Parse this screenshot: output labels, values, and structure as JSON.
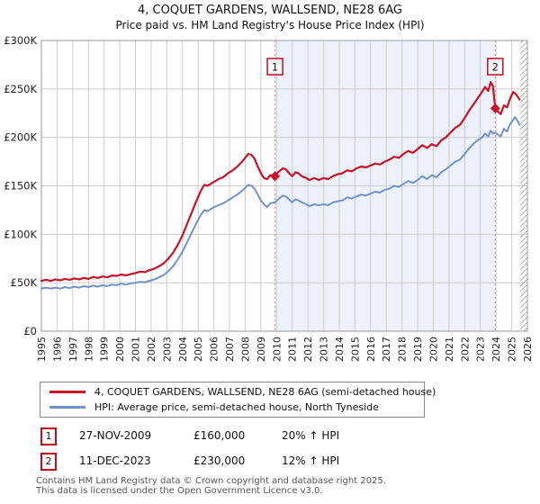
{
  "title": "4, COQUET GARDENS, WALLSEND, NE28 6AG",
  "subtitle": "Price paid vs. HM Land Registry's House Price Index (HPI)",
  "legend": [
    {
      "label": "4, COQUET GARDENS, WALLSEND, NE28 6AG (semi-detached house)",
      "color": "#c81426"
    },
    {
      "label": "HPI: Average price, semi-detached house, North Tyneside",
      "color": "#7094c8"
    }
  ],
  "annotations": [
    {
      "num": "1",
      "date": "27-NOV-2009",
      "price": "£160,000",
      "hpi": "20% ↑ HPI"
    },
    {
      "num": "2",
      "date": "11-DEC-2023",
      "price": "£230,000",
      "hpi": "12% ↑ HPI"
    }
  ],
  "footer": {
    "line1": "Contains HM Land Registry data © Crown copyright and database right 2025.",
    "line2": "This data is licensed under the Open Government Licence v3.0."
  },
  "chart_data": {
    "type": "line",
    "x_axis": {
      "min": 1995,
      "max": 2026,
      "ticks": [
        1995,
        1996,
        1997,
        1998,
        1999,
        2000,
        2001,
        2002,
        2003,
        2004,
        2005,
        2006,
        2007,
        2008,
        2009,
        2010,
        2011,
        2012,
        2013,
        2014,
        2015,
        2016,
        2017,
        2018,
        2019,
        2020,
        2021,
        2022,
        2023,
        2024,
        2025,
        2026
      ]
    },
    "y_axis": {
      "max": 300,
      "unit": "£K",
      "ticks": [
        {
          "v": 0,
          "label": "£0"
        },
        {
          "v": 50,
          "label": "£50K"
        },
        {
          "v": 100,
          "label": "£100K"
        },
        {
          "v": 150,
          "label": "£150K"
        },
        {
          "v": 200,
          "label": "£200K"
        },
        {
          "v": 250,
          "label": "£250K"
        },
        {
          "v": 300,
          "label": "£300K"
        }
      ]
    },
    "shade": {
      "from": 2009.9,
      "to": 2023.95
    },
    "hatch_from": 2025.55,
    "events": [
      {
        "label": "1",
        "year": 2009.9,
        "value": 160
      },
      {
        "label": "2",
        "year": 2023.95,
        "value": 230
      }
    ],
    "colors": {
      "grid": "#cccccc",
      "border": "#9a9a9a",
      "shade": "#edf1f9",
      "event_line": "#e89090",
      "event_box_border": "#c00d1e",
      "hatch": "#b0b0b0",
      "tick_text": "#222222"
    },
    "series": [
      {
        "name": "property",
        "color": "#c81426",
        "width": 2.2,
        "points": [
          [
            1995.0,
            52
          ],
          [
            1995.3,
            53
          ],
          [
            1995.6,
            52
          ],
          [
            1995.9,
            53.5
          ],
          [
            1996.2,
            52.5
          ],
          [
            1996.5,
            54
          ],
          [
            1996.8,
            53
          ],
          [
            1997.1,
            54.5
          ],
          [
            1997.4,
            53.5
          ],
          [
            1997.7,
            55
          ],
          [
            1998.0,
            54
          ],
          [
            1998.3,
            56
          ],
          [
            1998.6,
            55
          ],
          [
            1998.9,
            56.5
          ],
          [
            1999.2,
            55.5
          ],
          [
            1999.5,
            57.5
          ],
          [
            1999.8,
            57
          ],
          [
            2000.1,
            58.5
          ],
          [
            2000.4,
            57.5
          ],
          [
            2000.7,
            59
          ],
          [
            2001.0,
            60
          ],
          [
            2001.3,
            61.5
          ],
          [
            2001.6,
            61
          ],
          [
            2001.9,
            63
          ],
          [
            2002.2,
            64.5
          ],
          [
            2002.5,
            67
          ],
          [
            2002.8,
            70
          ],
          [
            2003.1,
            75
          ],
          [
            2003.4,
            81
          ],
          [
            2003.7,
            89
          ],
          [
            2004.0,
            99
          ],
          [
            2004.3,
            111
          ],
          [
            2004.6,
            123
          ],
          [
            2004.9,
            135
          ],
          [
            2005.2,
            146
          ],
          [
            2005.4,
            151
          ],
          [
            2005.6,
            150
          ],
          [
            2005.8,
            152
          ],
          [
            2006.0,
            154
          ],
          [
            2006.3,
            157
          ],
          [
            2006.6,
            159
          ],
          [
            2006.9,
            163
          ],
          [
            2007.2,
            166
          ],
          [
            2007.5,
            170
          ],
          [
            2007.8,
            175
          ],
          [
            2008.0,
            179
          ],
          [
            2008.2,
            183
          ],
          [
            2008.4,
            182
          ],
          [
            2008.6,
            178
          ],
          [
            2008.8,
            170
          ],
          [
            2009.0,
            163
          ],
          [
            2009.2,
            158
          ],
          [
            2009.4,
            157
          ],
          [
            2009.6,
            161
          ],
          [
            2009.9,
            160
          ],
          [
            2010.1,
            164
          ],
          [
            2010.4,
            168
          ],
          [
            2010.6,
            167
          ],
          [
            2010.8,
            163
          ],
          [
            2011.0,
            160
          ],
          [
            2011.2,
            164
          ],
          [
            2011.4,
            163
          ],
          [
            2011.6,
            160
          ],
          [
            2011.9,
            158
          ],
          [
            2012.1,
            156
          ],
          [
            2012.4,
            158
          ],
          [
            2012.7,
            156
          ],
          [
            2013.0,
            158
          ],
          [
            2013.3,
            157
          ],
          [
            2013.6,
            160
          ],
          [
            2013.9,
            162
          ],
          [
            2014.2,
            163
          ],
          [
            2014.5,
            166
          ],
          [
            2014.8,
            165
          ],
          [
            2015.1,
            168
          ],
          [
            2015.4,
            170
          ],
          [
            2015.7,
            169
          ],
          [
            2016.0,
            171
          ],
          [
            2016.3,
            173
          ],
          [
            2016.6,
            172
          ],
          [
            2016.9,
            175
          ],
          [
            2017.2,
            177
          ],
          [
            2017.5,
            180
          ],
          [
            2017.8,
            179
          ],
          [
            2018.1,
            183
          ],
          [
            2018.4,
            186
          ],
          [
            2018.7,
            184
          ],
          [
            2019.0,
            188
          ],
          [
            2019.3,
            192
          ],
          [
            2019.6,
            189
          ],
          [
            2019.9,
            193
          ],
          [
            2020.2,
            191
          ],
          [
            2020.5,
            197
          ],
          [
            2020.8,
            200
          ],
          [
            2021.1,
            205
          ],
          [
            2021.4,
            210
          ],
          [
            2021.7,
            213
          ],
          [
            2022.0,
            220
          ],
          [
            2022.3,
            228
          ],
          [
            2022.6,
            235
          ],
          [
            2022.9,
            242
          ],
          [
            2023.1,
            247
          ],
          [
            2023.3,
            252
          ],
          [
            2023.5,
            248
          ],
          [
            2023.65,
            257
          ],
          [
            2023.8,
            253
          ],
          [
            2023.95,
            230
          ],
          [
            2024.1,
            227
          ],
          [
            2024.3,
            224
          ],
          [
            2024.5,
            233
          ],
          [
            2024.7,
            231
          ],
          [
            2024.9,
            240
          ],
          [
            2025.1,
            247
          ],
          [
            2025.3,
            244
          ],
          [
            2025.5,
            239
          ]
        ]
      },
      {
        "name": "hpi",
        "color": "#7094c8",
        "width": 2,
        "points": [
          [
            1995.0,
            44
          ],
          [
            1995.3,
            45
          ],
          [
            1995.6,
            44
          ],
          [
            1995.9,
            45
          ],
          [
            1996.2,
            44
          ],
          [
            1996.5,
            45.5
          ],
          [
            1996.8,
            44.5
          ],
          [
            1997.1,
            46
          ],
          [
            1997.4,
            45
          ],
          [
            1997.7,
            46.5
          ],
          [
            1998.0,
            45.5
          ],
          [
            1998.3,
            47
          ],
          [
            1998.6,
            46
          ],
          [
            1998.9,
            47.5
          ],
          [
            1999.2,
            46.5
          ],
          [
            1999.5,
            48
          ],
          [
            1999.8,
            47.5
          ],
          [
            2000.1,
            49
          ],
          [
            2000.4,
            48
          ],
          [
            2000.7,
            49.5
          ],
          [
            2001.0,
            50
          ],
          [
            2001.3,
            51
          ],
          [
            2001.6,
            50.5
          ],
          [
            2001.9,
            52
          ],
          [
            2002.2,
            53.5
          ],
          [
            2002.5,
            55.5
          ],
          [
            2002.8,
            58
          ],
          [
            2003.1,
            62
          ],
          [
            2003.4,
            67
          ],
          [
            2003.7,
            74
          ],
          [
            2004.0,
            82
          ],
          [
            2004.3,
            92
          ],
          [
            2004.6,
            102
          ],
          [
            2004.9,
            112
          ],
          [
            2005.2,
            121
          ],
          [
            2005.4,
            125
          ],
          [
            2005.6,
            124
          ],
          [
            2005.8,
            126
          ],
          [
            2006.0,
            128
          ],
          [
            2006.3,
            130
          ],
          [
            2006.6,
            132
          ],
          [
            2006.9,
            135
          ],
          [
            2007.2,
            138
          ],
          [
            2007.5,
            141
          ],
          [
            2007.8,
            145
          ],
          [
            2008.0,
            148
          ],
          [
            2008.2,
            151
          ],
          [
            2008.4,
            150
          ],
          [
            2008.6,
            147
          ],
          [
            2008.8,
            141
          ],
          [
            2009.0,
            135
          ],
          [
            2009.2,
            131
          ],
          [
            2009.4,
            128
          ],
          [
            2009.6,
            132
          ],
          [
            2009.9,
            133
          ],
          [
            2010.1,
            136
          ],
          [
            2010.4,
            140
          ],
          [
            2010.6,
            139
          ],
          [
            2010.8,
            136
          ],
          [
            2011.0,
            133
          ],
          [
            2011.2,
            136
          ],
          [
            2011.4,
            135
          ],
          [
            2011.6,
            133
          ],
          [
            2011.9,
            131
          ],
          [
            2012.1,
            129
          ],
          [
            2012.4,
            131
          ],
          [
            2012.7,
            130
          ],
          [
            2013.0,
            131
          ],
          [
            2013.3,
            130
          ],
          [
            2013.6,
            133
          ],
          [
            2013.9,
            134
          ],
          [
            2014.2,
            135
          ],
          [
            2014.5,
            138
          ],
          [
            2014.8,
            137
          ],
          [
            2015.1,
            139
          ],
          [
            2015.4,
            141
          ],
          [
            2015.7,
            140
          ],
          [
            2016.0,
            142
          ],
          [
            2016.3,
            144
          ],
          [
            2016.6,
            143
          ],
          [
            2016.9,
            146
          ],
          [
            2017.2,
            147
          ],
          [
            2017.5,
            150
          ],
          [
            2017.8,
            149
          ],
          [
            2018.1,
            152
          ],
          [
            2018.4,
            155
          ],
          [
            2018.7,
            153
          ],
          [
            2019.0,
            156
          ],
          [
            2019.3,
            160
          ],
          [
            2019.6,
            157
          ],
          [
            2019.9,
            161
          ],
          [
            2020.2,
            159
          ],
          [
            2020.5,
            164
          ],
          [
            2020.8,
            167
          ],
          [
            2021.1,
            171
          ],
          [
            2021.4,
            175
          ],
          [
            2021.7,
            177
          ],
          [
            2022.0,
            183
          ],
          [
            2022.3,
            189
          ],
          [
            2022.6,
            194
          ],
          [
            2022.9,
            198
          ],
          [
            2023.1,
            200
          ],
          [
            2023.3,
            204
          ],
          [
            2023.5,
            201
          ],
          [
            2023.65,
            207
          ],
          [
            2023.8,
            204
          ],
          [
            2023.95,
            205
          ],
          [
            2024.1,
            203
          ],
          [
            2024.3,
            201
          ],
          [
            2024.5,
            209
          ],
          [
            2024.7,
            206
          ],
          [
            2024.9,
            214
          ],
          [
            2025.1,
            218
          ],
          [
            2025.2,
            221
          ],
          [
            2025.3,
            219
          ],
          [
            2025.5,
            213
          ]
        ]
      }
    ]
  }
}
